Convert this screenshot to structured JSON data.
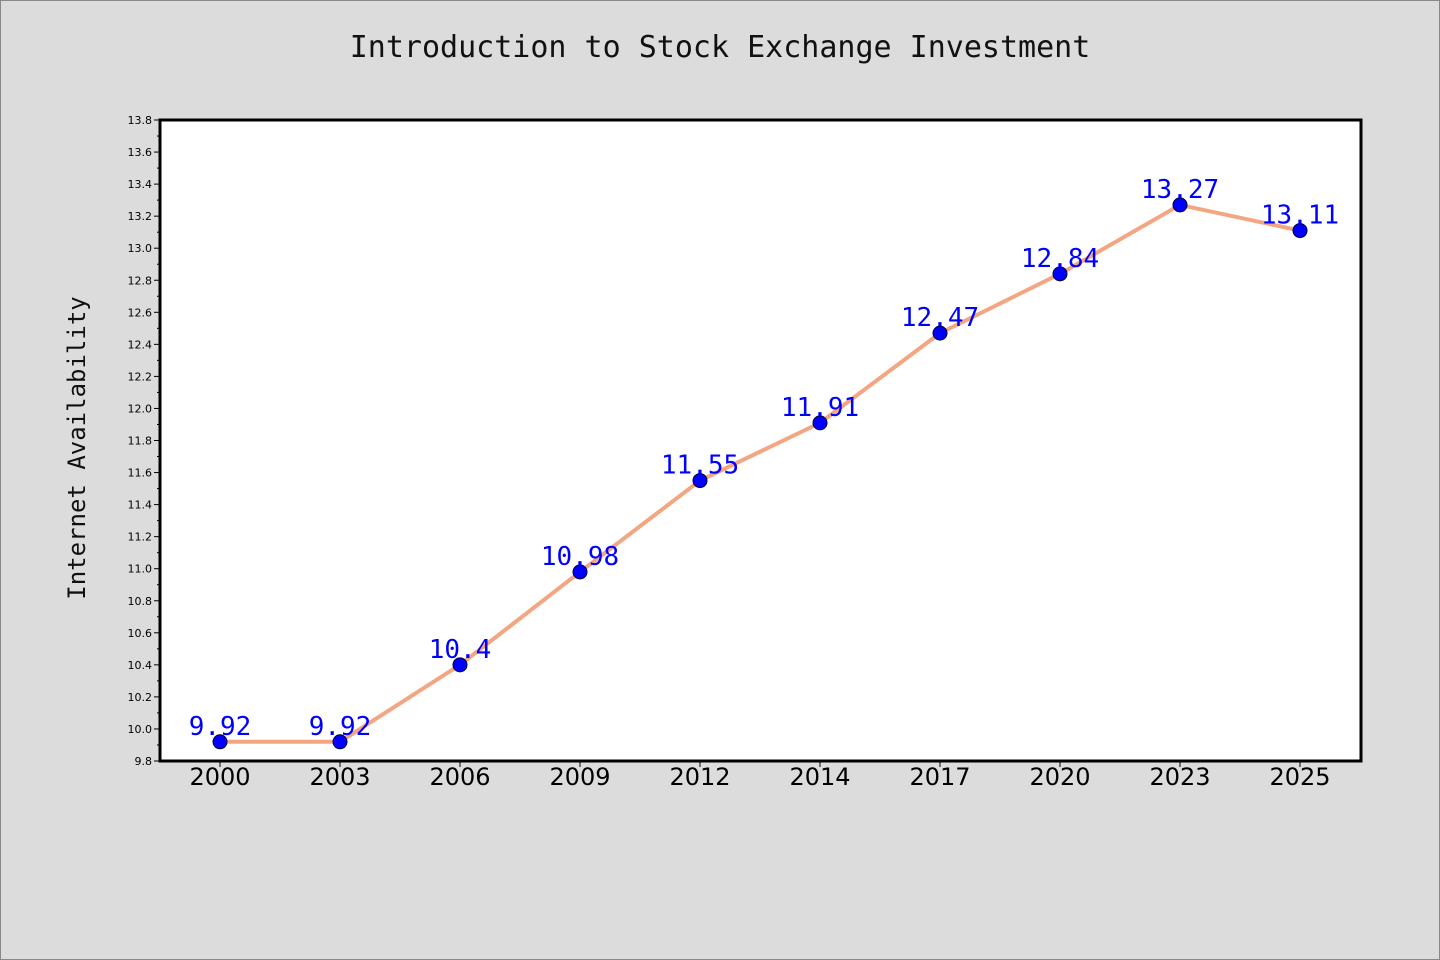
{
  "chart_data": {
    "type": "line",
    "title": "Introduction to Stock Exchange Investment",
    "xlabel": "",
    "ylabel": "Internet Availability",
    "categories": [
      "2000",
      "2003",
      "2006",
      "2009",
      "2012",
      "2014",
      "2017",
      "2020",
      "2023",
      "2025"
    ],
    "series": [
      {
        "values": [
          9.92,
          9.92,
          10.4,
          10.98,
          11.55,
          11.91,
          12.47,
          12.84,
          13.27,
          13.11
        ],
        "labels": [
          "9.92",
          "9.92",
          "10.4",
          "10.98",
          "11.55",
          "11.91",
          "12.47",
          "12.84",
          "13.27",
          "13.11"
        ]
      }
    ],
    "ylim": [
      9.8,
      13.8
    ],
    "yticks": [
      "9.8",
      "10.0",
      "10.2",
      "10.4",
      "10.6",
      "10.8",
      "11.0",
      "11.2",
      "11.4",
      "11.6",
      "11.8",
      "12.0",
      "12.2",
      "12.4",
      "12.6",
      "12.8",
      "13.0",
      "13.2",
      "13.4",
      "13.6",
      "13.8"
    ],
    "grid": false,
    "legend": "none",
    "colors": {
      "line": "#f4a582",
      "marker": "#0000ff",
      "marker_edge": "#000033",
      "data_label": "#0000ff",
      "plot_background": "#ffffff",
      "figure_background": "#dcdcdc"
    }
  }
}
